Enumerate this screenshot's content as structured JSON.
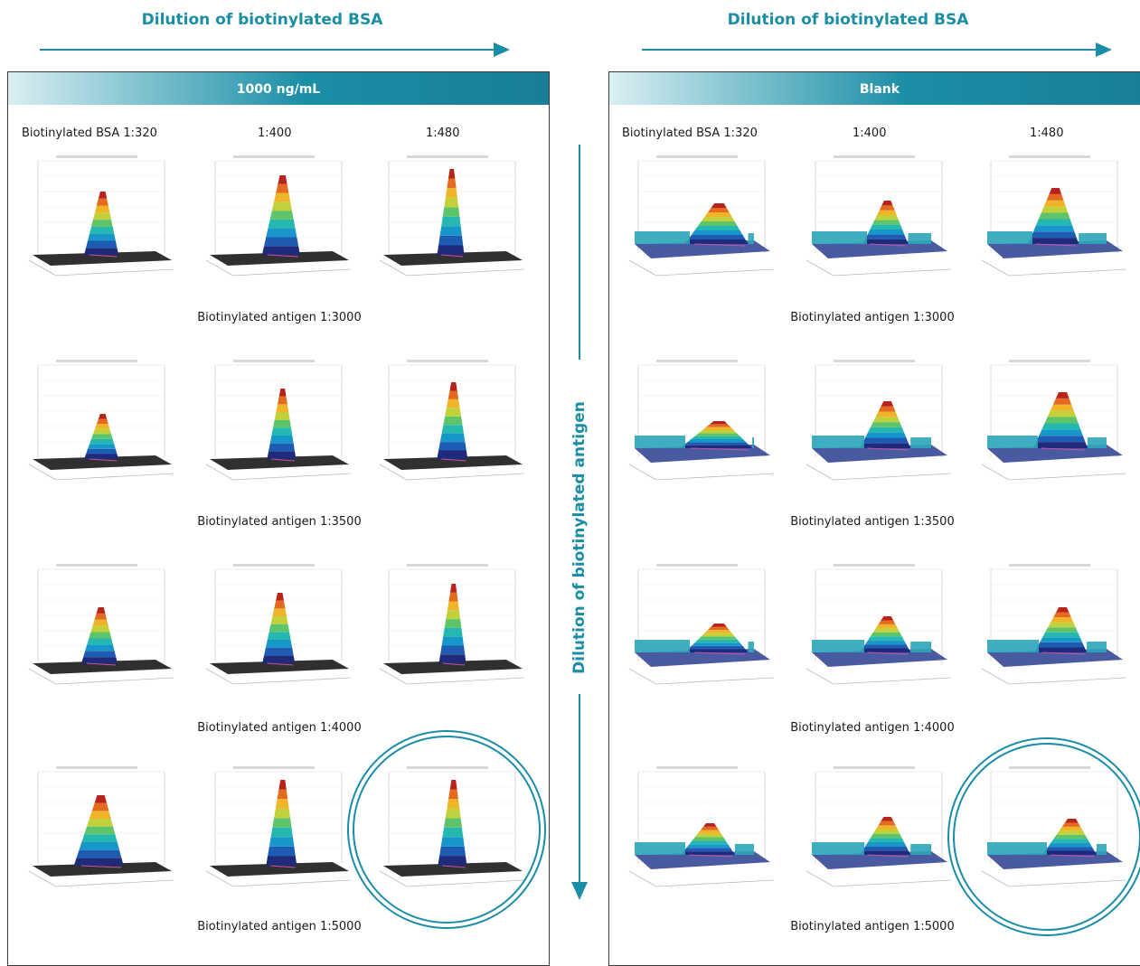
{
  "top_left_title": "Dilution of biotinylated BSA",
  "top_right_title": "Dilution of biotinylated BSA",
  "vertical_label": "Dilution of biotinylated antigen",
  "panels": [
    {
      "header": "1000 ng/mL",
      "columns": [
        "Biotinylated BSA 1:320",
        "1:400",
        "1:480"
      ],
      "rows": [
        "Biotinylated antigen 1:3000",
        "Biotinylated antigen 1:3500",
        "Biotinylated antigen 1:4000",
        "Biotinylated antigen 1:5000"
      ]
    },
    {
      "header": "Blank",
      "columns": [
        "Biotinylated BSA 1:320",
        "1:400",
        "1:480"
      ],
      "rows": [
        "Biotinylated antigen 1:3000",
        "Biotinylated antigen 1:3500",
        "Biotinylated antigen 1:4000",
        "Biotinylated antigen 1:5000"
      ]
    }
  ],
  "colors": {
    "accent": "#1b8ea6"
  },
  "highlight": "bottom-right plot of each panel circled"
}
